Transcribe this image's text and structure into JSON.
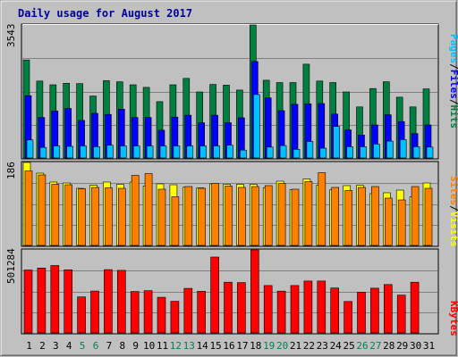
{
  "chart_data": [
    {
      "type": "bar",
      "title": "Daily usage for August 2017",
      "categories": [
        "1",
        "2",
        "3",
        "4",
        "5",
        "6",
        "7",
        "8",
        "9",
        "10",
        "11",
        "12",
        "13",
        "14",
        "15",
        "16",
        "17",
        "18",
        "19",
        "20",
        "21",
        "22",
        "23",
        "24",
        "25",
        "26",
        "27",
        "28",
        "29",
        "30",
        "31"
      ],
      "weekend_categories": [
        "5",
        "6",
        "12",
        "13",
        "19",
        "20",
        "26",
        "27"
      ],
      "ylabel": "Pages / Files / Hits",
      "ylabel_parts": [
        "Pages",
        "/",
        "Files",
        "/",
        "Hits"
      ],
      "ymax_label": "3543",
      "ylim": [
        0,
        3543
      ],
      "series": [
        {
          "name": "Hits",
          "color": "#008040",
          "values": [
            2610,
            2050,
            1950,
            1990,
            1980,
            1650,
            2060,
            2030,
            1950,
            1880,
            1500,
            1950,
            2120,
            1760,
            1960,
            1940,
            1810,
            3543,
            2070,
            2010,
            2010,
            2500,
            2050,
            2010,
            1760,
            1360,
            1850,
            2030,
            1620,
            1360,
            1840
          ]
        },
        {
          "name": "Files",
          "color": "#0000ff",
          "values": [
            1660,
            1080,
            1250,
            1320,
            1000,
            1190,
            1160,
            1300,
            1080,
            1080,
            740,
            1090,
            1140,
            940,
            1140,
            940,
            1070,
            2570,
            1600,
            1260,
            1430,
            1440,
            1450,
            1170,
            750,
            610,
            880,
            1150,
            970,
            650,
            880
          ]
        },
        {
          "name": "Pages",
          "color": "#00c0ff",
          "values": [
            480,
            280,
            320,
            310,
            320,
            300,
            340,
            320,
            320,
            320,
            320,
            320,
            320,
            320,
            320,
            340,
            210,
            1690,
            290,
            330,
            230,
            440,
            260,
            840,
            300,
            300,
            370,
            450,
            490,
            300,
            290
          ]
        }
      ]
    },
    {
      "type": "bar",
      "categories": [
        "1",
        "2",
        "3",
        "4",
        "5",
        "6",
        "7",
        "8",
        "9",
        "10",
        "11",
        "12",
        "13",
        "14",
        "15",
        "16",
        "17",
        "18",
        "19",
        "20",
        "21",
        "22",
        "23",
        "24",
        "25",
        "26",
        "27",
        "28",
        "29",
        "30",
        "31"
      ],
      "ylabel": "Sites / Visits",
      "ylabel_parts": [
        "Sites",
        "/",
        "Visits"
      ],
      "ymax_label": "186",
      "ylim": [
        0,
        186
      ],
      "series": [
        {
          "name": "Visits",
          "color": "#ffff00",
          "values": [
            186,
            162,
            142,
            140,
            128,
            135,
            142,
            137,
            142,
            133,
            138,
            136,
            131,
            129,
            138,
            137,
            137,
            137,
            129,
            144,
            125,
            149,
            135,
            125,
            134,
            135,
            116,
            118,
            124,
            109,
            140
          ]
        },
        {
          "name": "Sites",
          "color": "#ff8000",
          "values": [
            167,
            158,
            137,
            136,
            127,
            130,
            129,
            128,
            157,
            161,
            126,
            109,
            132,
            128,
            139,
            133,
            130,
            132,
            134,
            139,
            126,
            143,
            163,
            130,
            123,
            130,
            132,
            106,
            102,
            132,
            128
          ]
        }
      ]
    },
    {
      "type": "bar",
      "categories": [
        "1",
        "2",
        "3",
        "4",
        "5",
        "6",
        "7",
        "8",
        "9",
        "10",
        "11",
        "12",
        "13",
        "14",
        "15",
        "16",
        "17",
        "18",
        "19",
        "20",
        "21",
        "22",
        "23",
        "24",
        "25",
        "26",
        "27",
        "28",
        "29",
        "30",
        "31"
      ],
      "ylabel": "KBytes",
      "ymax_label": "501284",
      "ylim": [
        0,
        501284
      ],
      "series": [
        {
          "name": "KBytes",
          "color": "#ff0000",
          "values": [
            380000,
            392000,
            407000,
            381000,
            217000,
            253000,
            382000,
            378000,
            250000,
            255000,
            215000,
            191000,
            269000,
            251000,
            458000,
            306000,
            304000,
            506000,
            286000,
            252000,
            286000,
            313000,
            313000,
            271000,
            190000,
            246000,
            270000,
            292000,
            228000,
            306000,
            0
          ]
        }
      ]
    }
  ]
}
